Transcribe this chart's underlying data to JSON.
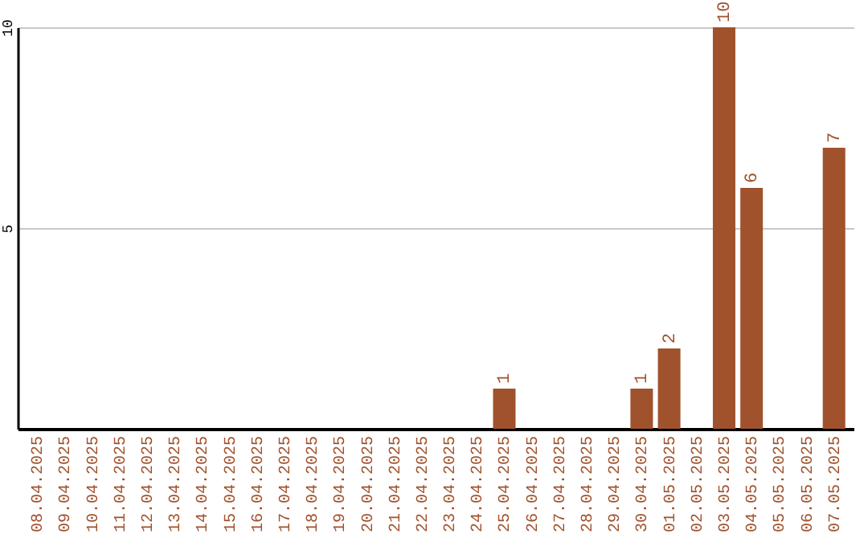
{
  "chart_data": {
    "type": "bar",
    "categories": [
      "08.04.2025",
      "09.04.2025",
      "10.04.2025",
      "11.04.2025",
      "12.04.2025",
      "13.04.2025",
      "14.04.2025",
      "15.04.2025",
      "16.04.2025",
      "17.04.2025",
      "18.04.2025",
      "19.04.2025",
      "20.04.2025",
      "21.04.2025",
      "22.04.2025",
      "23.04.2025",
      "24.04.2025",
      "25.04.2025",
      "26.04.2025",
      "27.04.2025",
      "28.04.2025",
      "29.04.2025",
      "30.04.2025",
      "01.05.2025",
      "02.05.2025",
      "03.05.2025",
      "04.05.2025",
      "05.05.2025",
      "06.05.2025",
      "07.05.2025"
    ],
    "values": [
      0,
      0,
      0,
      0,
      0,
      0,
      0,
      0,
      0,
      0,
      0,
      0,
      0,
      0,
      0,
      0,
      0,
      1,
      0,
      0,
      0,
      0,
      1,
      2,
      0,
      10,
      6,
      0,
      0,
      7
    ],
    "value_labels": [
      null,
      null,
      null,
      null,
      null,
      null,
      null,
      null,
      null,
      null,
      null,
      null,
      null,
      null,
      null,
      null,
      null,
      "1",
      null,
      null,
      null,
      null,
      "1",
      "2",
      null,
      "10",
      "6",
      null,
      null,
      "7"
    ],
    "color": "#a0522d",
    "ylim": [
      0,
      10
    ],
    "yticks": [
      5,
      10
    ],
    "grid": "y"
  }
}
